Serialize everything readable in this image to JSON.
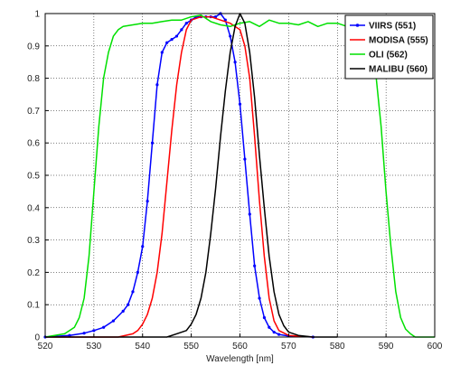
{
  "chart_data": {
    "type": "line",
    "title": "",
    "xlabel": "Wavelength [nm]",
    "ylabel": "",
    "xlim": [
      520,
      600
    ],
    "ylim": [
      0,
      1
    ],
    "xticks": [
      "520",
      "530",
      "540",
      "550",
      "560",
      "570",
      "580",
      "590",
      "600"
    ],
    "yticks": [
      "0",
      "0.1",
      "0.2",
      "0.3",
      "0.4",
      "0.5",
      "0.6",
      "0.7",
      "0.8",
      "0.9",
      "1"
    ],
    "grid": true,
    "legend_position": "top-right",
    "series": [
      {
        "name": "VIIRS (551)",
        "color": "#0000ff",
        "markers": true,
        "x": [
          520,
          525,
          528,
          530,
          532,
          534,
          536,
          537,
          538,
          539,
          540,
          541,
          542,
          543,
          544,
          545,
          546,
          547,
          548,
          549,
          550,
          551,
          552,
          553,
          554,
          555,
          556,
          557,
          558,
          559,
          560,
          561,
          562,
          563,
          564,
          565,
          566,
          567,
          568,
          570,
          575
        ],
        "y": [
          0.0,
          0.005,
          0.012,
          0.02,
          0.03,
          0.05,
          0.08,
          0.1,
          0.14,
          0.2,
          0.28,
          0.42,
          0.6,
          0.78,
          0.88,
          0.91,
          0.92,
          0.93,
          0.95,
          0.97,
          0.98,
          0.99,
          0.99,
          0.99,
          0.99,
          0.99,
          1.0,
          0.98,
          0.93,
          0.85,
          0.72,
          0.55,
          0.38,
          0.22,
          0.12,
          0.06,
          0.03,
          0.015,
          0.008,
          0.003,
          0.0
        ]
      },
      {
        "name": "MODISA (555)",
        "color": "#ff0000",
        "markers": false,
        "x": [
          520,
          535,
          538,
          539,
          540,
          541,
          542,
          543,
          544,
          545,
          546,
          547,
          548,
          549,
          550,
          552,
          554,
          556,
          558,
          560,
          561,
          562,
          563,
          564,
          565,
          566,
          567,
          568,
          570,
          575
        ],
        "y": [
          0.0,
          0.0,
          0.01,
          0.02,
          0.04,
          0.07,
          0.12,
          0.2,
          0.32,
          0.48,
          0.64,
          0.78,
          0.88,
          0.95,
          0.98,
          0.99,
          0.99,
          0.98,
          0.97,
          0.95,
          0.9,
          0.8,
          0.62,
          0.42,
          0.25,
          0.12,
          0.05,
          0.02,
          0.005,
          0.0
        ]
      },
      {
        "name": "OLI (562)",
        "color": "#00e000",
        "markers": false,
        "x": [
          520,
          524,
          526,
          527,
          528,
          529,
          530,
          531,
          532,
          533,
          534,
          535,
          536,
          538,
          540,
          542,
          544,
          546,
          548,
          550,
          552,
          554,
          556,
          558,
          560,
          562,
          564,
          566,
          568,
          570,
          572,
          574,
          576,
          578,
          580,
          582,
          584,
          586,
          588,
          589,
          590,
          591,
          592,
          593,
          594,
          595,
          596,
          600
        ],
        "y": [
          0.0,
          0.01,
          0.03,
          0.06,
          0.12,
          0.25,
          0.45,
          0.65,
          0.8,
          0.88,
          0.93,
          0.95,
          0.96,
          0.965,
          0.97,
          0.97,
          0.975,
          0.98,
          0.98,
          0.99,
          0.995,
          0.975,
          0.965,
          0.96,
          0.97,
          0.975,
          0.96,
          0.98,
          0.97,
          0.97,
          0.965,
          0.975,
          0.96,
          0.97,
          0.97,
          0.96,
          0.95,
          0.93,
          0.8,
          0.65,
          0.45,
          0.28,
          0.14,
          0.06,
          0.025,
          0.01,
          0.0,
          0.0
        ]
      },
      {
        "name": "MALIBU (560)",
        "color": "#000000",
        "markers": false,
        "x": [
          520,
          545,
          547,
          549,
          550,
          551,
          552,
          553,
          554,
          555,
          556,
          557,
          558,
          559,
          560,
          561,
          562,
          563,
          564,
          565,
          566,
          567,
          568,
          569,
          570,
          572,
          575,
          580
        ],
        "y": [
          0.0,
          0.0,
          0.01,
          0.02,
          0.04,
          0.07,
          0.12,
          0.2,
          0.32,
          0.46,
          0.62,
          0.76,
          0.88,
          0.96,
          1.0,
          0.97,
          0.88,
          0.74,
          0.56,
          0.4,
          0.25,
          0.14,
          0.07,
          0.035,
          0.015,
          0.005,
          0.0,
          0.0
        ]
      }
    ]
  }
}
